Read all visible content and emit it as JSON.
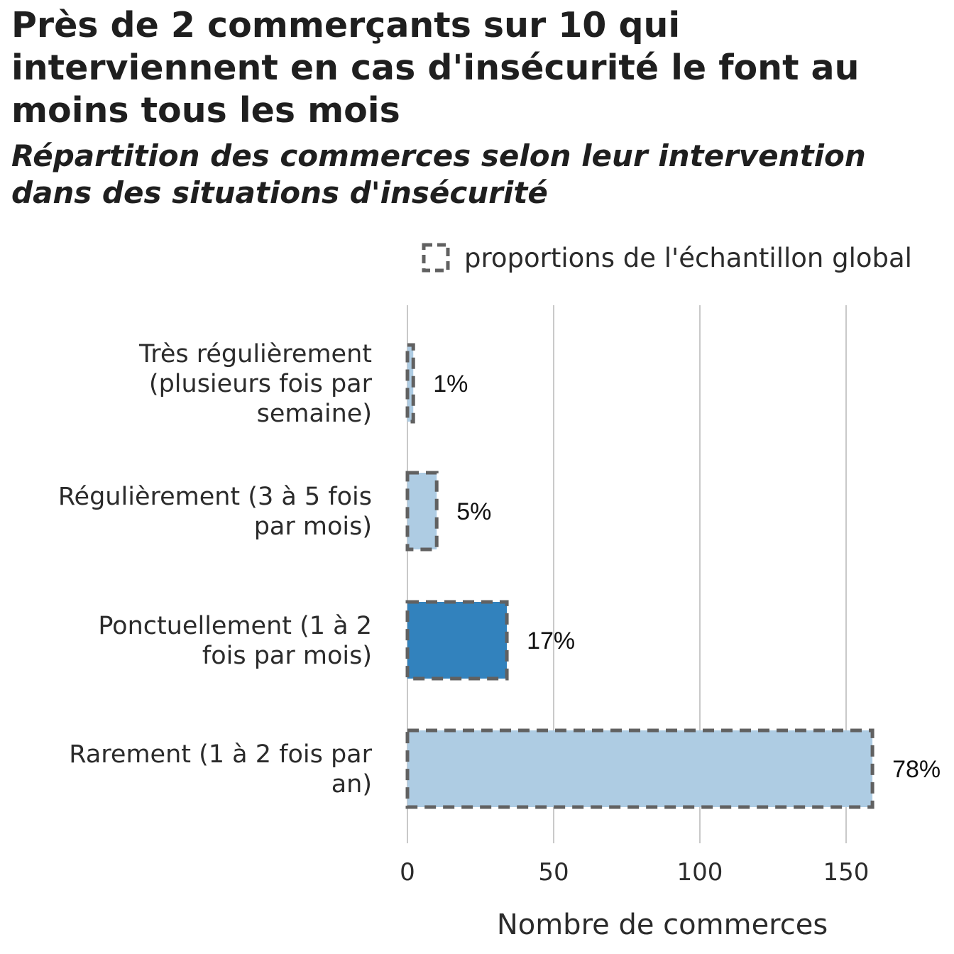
{
  "chart_data": {
    "type": "bar",
    "orientation": "horizontal",
    "title": "Près de 2 commerçants sur 10 qui interviennent en cas d'insécurité le font au moins tous les mois",
    "subtitle": "Répartition des commerces selon leur intervention dans des situations d'insécurité",
    "xlabel": "Nombre de commerces",
    "ylabel": "",
    "xlim": [
      0,
      160
    ],
    "xticks": [
      0,
      50,
      100,
      150
    ],
    "grid": true,
    "legend": {
      "placement": "top-right",
      "label": "proportions de l'échantillon global",
      "style": "dashed-outline"
    },
    "categories": [
      [
        "Très régulièrement",
        "(plusieurs fois par",
        "semaine)"
      ],
      [
        "Régulièrement (3 à 5 fois",
        "par mois)"
      ],
      [
        "Ponctuellement (1 à 2",
        "fois par mois)"
      ],
      [
        "Rarement (1 à 2 fois par",
        "an)"
      ]
    ],
    "values": [
      2,
      10,
      34,
      159
    ],
    "value_labels": [
      "1%",
      "5%",
      "17%",
      "78%"
    ],
    "colors": [
      "#aecce3",
      "#aecce3",
      "#3282bd",
      "#aecce3"
    ],
    "highlighted_index": 2,
    "outline_color": "#616161"
  }
}
